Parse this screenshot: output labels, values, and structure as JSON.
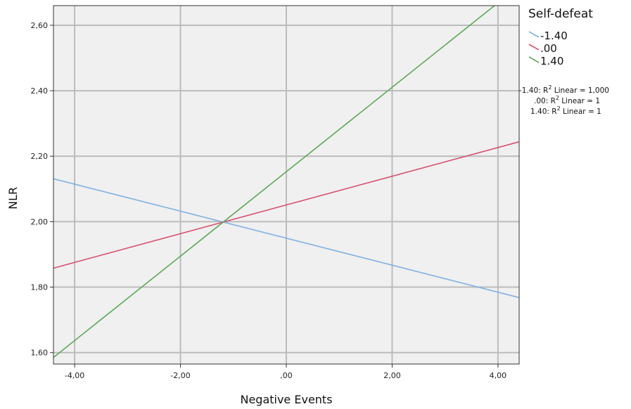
{
  "chart_data": {
    "type": "line",
    "title": "",
    "xlabel": "Negative Events",
    "ylabel": "NLR",
    "xlim": [
      -4.4,
      4.4
    ],
    "ylim": [
      1.565,
      2.66
    ],
    "xticks": [
      -4,
      -2,
      0,
      2,
      4
    ],
    "xtick_labels": [
      "-4,00",
      "-2,00",
      ",00",
      "2,00",
      "4,00"
    ],
    "yticks": [
      1.6,
      1.8,
      2.0,
      2.2,
      2.4,
      2.6
    ],
    "ytick_labels": [
      "1,60",
      "1,80",
      "2,00",
      "2,20",
      "2,40",
      "2,60"
    ],
    "grid": true,
    "background": "#f0f0f0",
    "legend": {
      "title": "Self-defeat",
      "placement": "outside-right",
      "fit_lines": [
        {
          "prefix": "-1.40: R",
          "suffix": " Linear = 1,000"
        },
        {
          "prefix": ".00: R",
          "suffix": " Linear = 1"
        },
        {
          "prefix": "1.40: R",
          "suffix": " Linear = 1"
        }
      ],
      "superscript": "2"
    },
    "series": [
      {
        "name": "-1.40",
        "color": "#7fb0e0",
        "x": [
          -4.4,
          4.4
        ],
        "y": [
          2.131,
          1.768
        ]
      },
      {
        "name": ".00",
        "color": "#d6506e",
        "x": [
          -4.4,
          4.4
        ],
        "y": [
          1.858,
          2.244
        ]
      },
      {
        "name": "1.40",
        "color": "#5fa85a",
        "x": [
          -4.4,
          4.4
        ],
        "y": [
          1.585,
          2.72
        ]
      }
    ]
  }
}
